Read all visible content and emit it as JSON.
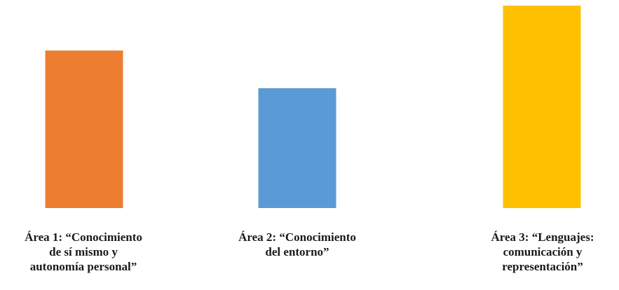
{
  "chart_data": {
    "type": "bar",
    "categories": [
      "Área 1: “Conocimiento\nde sí mismo y\nautonomía personal”",
      "Área 2: “Conocimiento\ndel entorno”",
      "Área 3: “Lenguajes:\ncomunicación y\nrepresentación”"
    ],
    "values": [
      0.778,
      0.592,
      1.0
    ],
    "value_scale": "relative height (no axis shown)",
    "colors": [
      "#ED7D31",
      "#5B9BD5",
      "#FFC000"
    ],
    "title": "",
    "xlabel": "",
    "ylabel": "",
    "grid": false,
    "legend": "none"
  }
}
